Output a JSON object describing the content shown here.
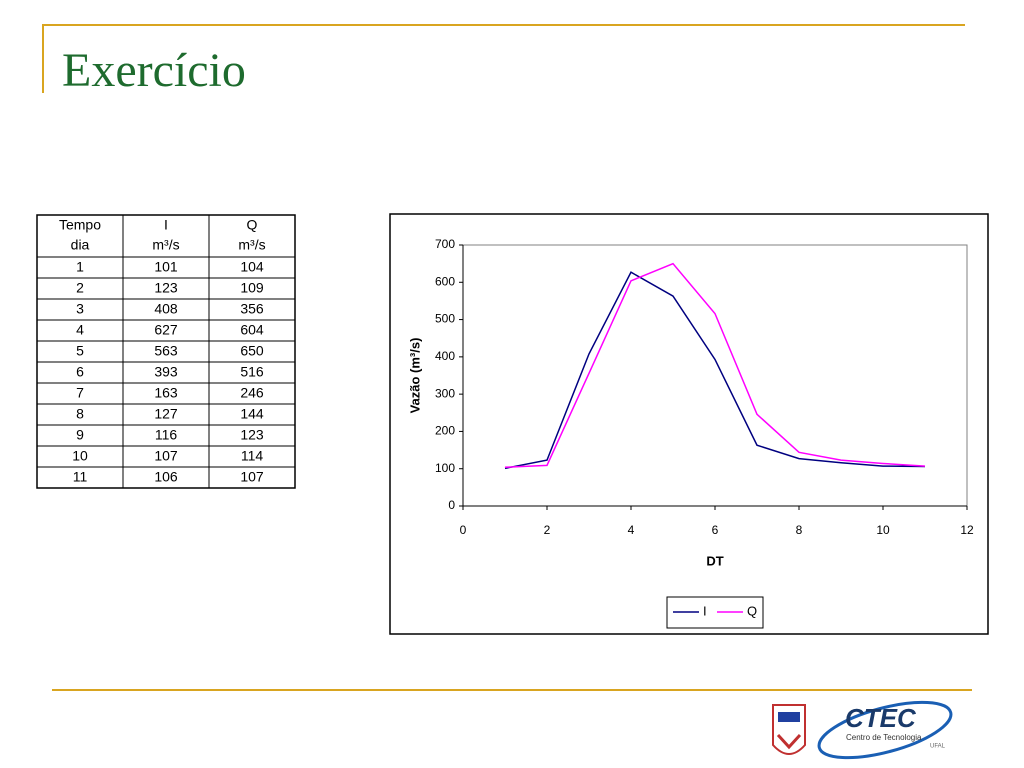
{
  "title": "Exercício",
  "table": {
    "header": [
      [
        "Tempo",
        "dia"
      ],
      [
        "I",
        "m³/s"
      ],
      [
        "Q",
        "m³/s"
      ]
    ],
    "rows": [
      [
        1,
        101,
        104
      ],
      [
        2,
        123,
        109
      ],
      [
        3,
        408,
        356
      ],
      [
        4,
        627,
        604
      ],
      [
        5,
        563,
        650
      ],
      [
        6,
        393,
        516
      ],
      [
        7,
        163,
        246
      ],
      [
        8,
        127,
        144
      ],
      [
        9,
        116,
        123
      ],
      [
        10,
        107,
        114
      ],
      [
        11,
        106,
        107
      ]
    ]
  },
  "chart_data": {
    "type": "line",
    "x_label": "DT",
    "y_label": "Vazão (m³/s)",
    "x": [
      1,
      2,
      3,
      4,
      5,
      6,
      7,
      8,
      9,
      10,
      11
    ],
    "series": [
      {
        "name": "I",
        "color": "#000080",
        "values": [
          101,
          123,
          408,
          627,
          563,
          393,
          163,
          127,
          116,
          107,
          106
        ]
      },
      {
        "name": "Q",
        "color": "#ff00ff",
        "values": [
          104,
          109,
          356,
          604,
          650,
          516,
          246,
          144,
          123,
          114,
          107
        ]
      }
    ],
    "xlim": [
      0,
      12
    ],
    "xticks": [
      0,
      2,
      4,
      6,
      8,
      10,
      12
    ],
    "ylim": [
      0,
      700
    ],
    "yticks": [
      0,
      100,
      200,
      300,
      400,
      500,
      600,
      700
    ],
    "legend": "bottom"
  },
  "logo": {
    "name": "CTEC",
    "subtitle": "Centro de Tecnologia",
    "org": "UFAL"
  }
}
